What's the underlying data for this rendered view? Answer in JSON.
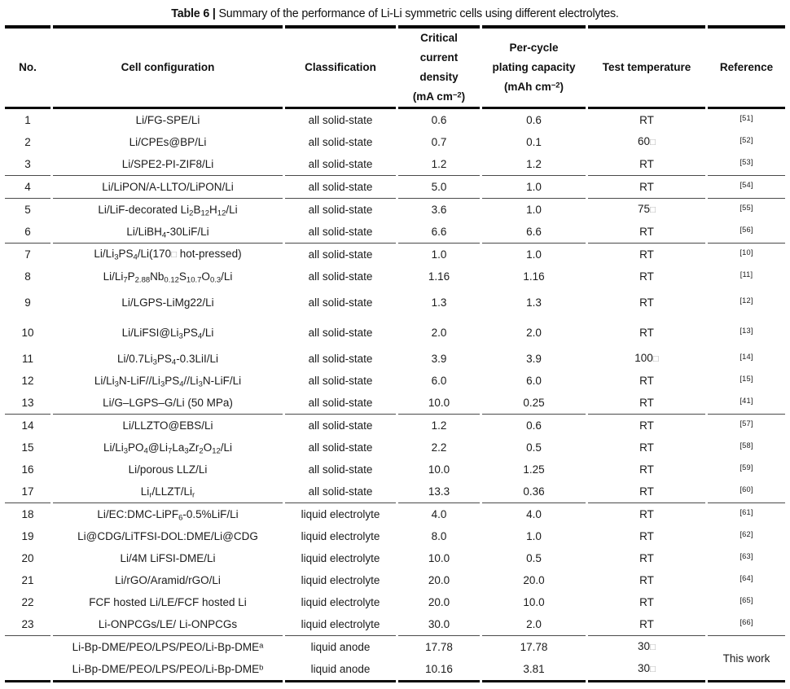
{
  "title": {
    "label": "Table 6 |",
    "text": "Summary of the performance of Li-Li symmetric cells using different electrolytes."
  },
  "table": {
    "columns": [
      {
        "key": "no",
        "label": "No."
      },
      {
        "key": "config",
        "label": "Cell configuration"
      },
      {
        "key": "cls",
        "label": "Classification"
      },
      {
        "key": "ccd",
        "label": "Critical\ncurrent\ndensity\n(mA cm^{−2})"
      },
      {
        "key": "cap",
        "label": "Per-cycle\nplating capacity\n(mAh cm^{−2})"
      },
      {
        "key": "temp",
        "label": "Test temperature"
      },
      {
        "key": "ref",
        "label": "Reference"
      }
    ],
    "sections": [
      {
        "rows": [
          {
            "no": "1",
            "config": "Li/FG-SPE/Li",
            "cls": "all solid-state",
            "ccd": "0.6",
            "cap": "0.6",
            "temp": "RT",
            "ref": "[51]"
          },
          {
            "no": "2",
            "config": "Li/CPEs@BP/Li",
            "cls": "all solid-state",
            "ccd": "0.7",
            "cap": "0.1",
            "temp": "60□",
            "ref": "[52]"
          },
          {
            "no": "3",
            "config": "Li/SPE2-PI-ZIF8/Li",
            "cls": "all solid-state",
            "ccd": "1.2",
            "cap": "1.2",
            "temp": "RT",
            "ref": "[53]"
          }
        ]
      },
      {
        "rows": [
          {
            "no": "4",
            "config": "Li/LiPON/A-LLTO/LiPON/Li",
            "cls": "all solid-state",
            "ccd": "5.0",
            "cap": "1.0",
            "temp": "RT",
            "ref": "[54]"
          }
        ]
      },
      {
        "rows": [
          {
            "no": "5",
            "config": "Li/LiF-decorated Li_{2}B_{12}H_{12}/Li",
            "cls": "all solid-state",
            "ccd": "3.6",
            "cap": "1.0",
            "temp": "75□",
            "ref": "[55]"
          },
          {
            "no": "6",
            "config": "Li/LiBH_{4}-30LiF/Li",
            "cls": "all solid-state",
            "ccd": "6.6",
            "cap": "6.6",
            "temp": "RT",
            "ref": "[56]"
          }
        ]
      },
      {
        "rows": [
          {
            "no": "7",
            "config": "Li/Li_{3}PS_{4}/Li(170□ hot-pressed)",
            "cls": "all solid-state",
            "ccd": "1.0",
            "cap": "1.0",
            "temp": "RT",
            "ref": "[10]"
          },
          {
            "no": "8",
            "config": "Li/Li_{7}P_{2.88}Nb_{0.12}S_{10.7}O_{0.3}/Li",
            "cls": "all solid-state",
            "ccd": "1.16",
            "cap": "1.16",
            "temp": "RT",
            "ref": "[11]"
          },
          {
            "no": "9",
            "config": "Li/LGPS-LiMg22/Li",
            "cls": "all solid-state",
            "ccd": "1.3",
            "cap": "1.3",
            "temp": "RT",
            "ref": "[12]",
            "tall": true
          },
          {
            "no": "10",
            "config": "Li/LiFSI@Li_{3}PS_{4}/Li",
            "cls": "all solid-state",
            "ccd": "2.0",
            "cap": "2.0",
            "temp": "RT",
            "ref": "[13]",
            "tall": true
          },
          {
            "no": "11",
            "config": "Li/0.7Li_{3}PS_{4}-0.3LiI/Li",
            "cls": "all solid-state",
            "ccd": "3.9",
            "cap": "3.9",
            "temp": "100□",
            "ref": "[14]"
          },
          {
            "no": "12",
            "config": "Li/Li_{3}N-LiF//Li_{3}PS_{4}//Li_{3}N-LiF/Li",
            "cls": "all solid-state",
            "ccd": "6.0",
            "cap": "6.0",
            "temp": "RT",
            "ref": "[15]"
          },
          {
            "no": "13",
            "config": "Li/G–LGPS–G/Li (50 MPa)",
            "cls": "all solid-state",
            "ccd": "10.0",
            "cap": "0.25",
            "temp": "RT",
            "ref": "[41]"
          }
        ]
      },
      {
        "rows": [
          {
            "no": "14",
            "config": "Li/LLZTO@EBS/Li",
            "cls": "all solid-state",
            "ccd": "1.2",
            "cap": "0.6",
            "temp": "RT",
            "ref": "[57]"
          },
          {
            "no": "15",
            "config": "Li/Li_{3}PO_{4}@Li_{7}La_{3}Zr_{2}O_{12}/Li",
            "cls": "all solid-state",
            "ccd": "2.2",
            "cap": "0.5",
            "temp": "RT",
            "ref": "[58]"
          },
          {
            "no": "16",
            "config": "Li/porous LLZ/Li",
            "cls": "all solid-state",
            "ccd": "10.0",
            "cap": "1.25",
            "temp": "RT",
            "ref": "[59]"
          },
          {
            "no": "17",
            "config": "Li_{r}/LLZT/Li_{r}",
            "cls": "all solid-state",
            "ccd": "13.3",
            "cap": "0.36",
            "temp": "RT",
            "ref": "[60]"
          }
        ]
      },
      {
        "rows": [
          {
            "no": "18",
            "config": "Li/EC:DMC-LiPF_{6}-0.5%LiF/Li",
            "cls": "liquid electrolyte",
            "ccd": "4.0",
            "cap": "4.0",
            "temp": "RT",
            "ref": "[61]"
          },
          {
            "no": "19",
            "config": "Li@CDG/LiTFSI-DOL:DME/Li@CDG",
            "cls": "liquid electrolyte",
            "ccd": "8.0",
            "cap": "1.0",
            "temp": "RT",
            "ref": "[62]"
          },
          {
            "no": "20",
            "config": "Li/4M LiFSI-DME/Li",
            "cls": "liquid electrolyte",
            "ccd": "10.0",
            "cap": "0.5",
            "temp": "RT",
            "ref": "[63]"
          },
          {
            "no": "21",
            "config": "Li/rGO/Aramid/rGO/Li",
            "cls": "liquid electrolyte",
            "ccd": "20.0",
            "cap": "20.0",
            "temp": "RT",
            "ref": "[64]"
          },
          {
            "no": "22",
            "config": "FCF hosted Li/LE/FCF hosted Li",
            "cls": "liquid electrolyte",
            "ccd": "20.0",
            "cap": "10.0",
            "temp": "RT",
            "ref": "[65]"
          },
          {
            "no": "23",
            "config": "Li-ONPCGs/LE/ Li-ONPCGs",
            "cls": "liquid electrolyte",
            "ccd": "30.0",
            "cap": "2.0",
            "temp": "RT",
            "ref": "[66]"
          }
        ]
      },
      {
        "rows": [
          {
            "no": "",
            "config": "Li-Bp-DME/PEO/LPS/PEO/Li-Bp-DME^{a}",
            "cls": "liquid anode",
            "ccd": "17.78",
            "cap": "17.78",
            "temp": "30□",
            "ref": "This work",
            "ref_rowspan": 2
          },
          {
            "no": "",
            "config": "Li-Bp-DME/PEO/LPS/PEO/Li-Bp-DME^{b}",
            "cls": "liquid anode",
            "ccd": "10.16",
            "cap": "3.81",
            "temp": "30□",
            "ref": null
          }
        ]
      }
    ]
  }
}
